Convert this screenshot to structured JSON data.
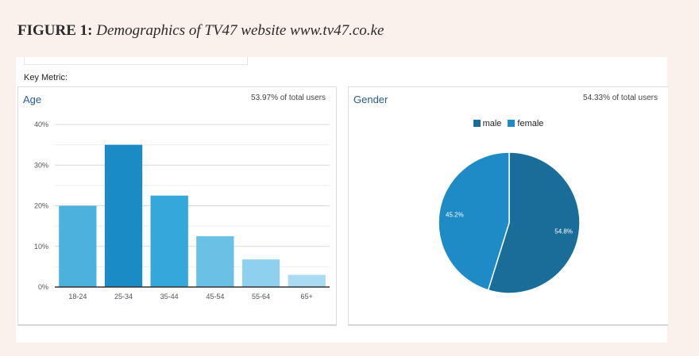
{
  "figure": {
    "label": "FIGURE 1:",
    "description": "Demographics of TV47 website www.tv47.co.ke"
  },
  "key_metric_label": "Key Metric:",
  "age_panel": {
    "title": "Age",
    "share": "53.97% of total users"
  },
  "gender_panel": {
    "title": "Gender",
    "share": "54.33% of total users"
  },
  "chart_data": [
    {
      "type": "bar",
      "title": "Age",
      "categories": [
        "18-24",
        "25-34",
        "35-44",
        "45-54",
        "55-64",
        "65+"
      ],
      "values": [
        20,
        35,
        22.5,
        12.5,
        6.8,
        3
      ],
      "colors": [
        "#4cb1dd",
        "#1b8bc6",
        "#36a7da",
        "#6bc0e6",
        "#8fd0ee",
        "#a9dcf3"
      ],
      "ylim": [
        0,
        40
      ],
      "yticks": [
        0,
        10,
        20,
        30,
        40
      ],
      "ytick_labels": [
        "0%",
        "10%",
        "20%",
        "30%",
        "40%"
      ],
      "grid": true,
      "xlabel": "",
      "ylabel": ""
    },
    {
      "type": "pie",
      "title": "Gender",
      "labels": [
        "male",
        "female"
      ],
      "values": [
        54.8,
        45.2
      ],
      "value_labels": [
        "54.8%",
        "45.2%"
      ],
      "colors": [
        "#1a6c99",
        "#1e8bc7"
      ],
      "legend": "top-center"
    }
  ]
}
